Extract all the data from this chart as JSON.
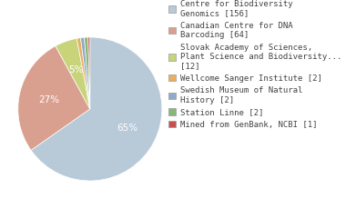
{
  "labels": [
    "Centre for Biodiversity\nGenomics [156]",
    "Canadian Centre for DNA\nBarcoding [64]",
    "Slovak Academy of Sciences,\nPlant Science and Biodiversity...\n[12]",
    "Wellcome Sanger Institute [2]",
    "Swedish Museum of Natural\nHistory [2]",
    "Station Linne [2]",
    "Mined from GenBank, NCBI [1]"
  ],
  "values": [
    156,
    64,
    12,
    2,
    2,
    2,
    1
  ],
  "colors": [
    "#b8c9d8",
    "#d9a090",
    "#c8d47a",
    "#e8b060",
    "#90aac8",
    "#88b878",
    "#c85050"
  ],
  "background_color": "#ffffff",
  "text_color": "#444444",
  "fontsize": 6.5,
  "pie_text_fontsize": 7.5
}
